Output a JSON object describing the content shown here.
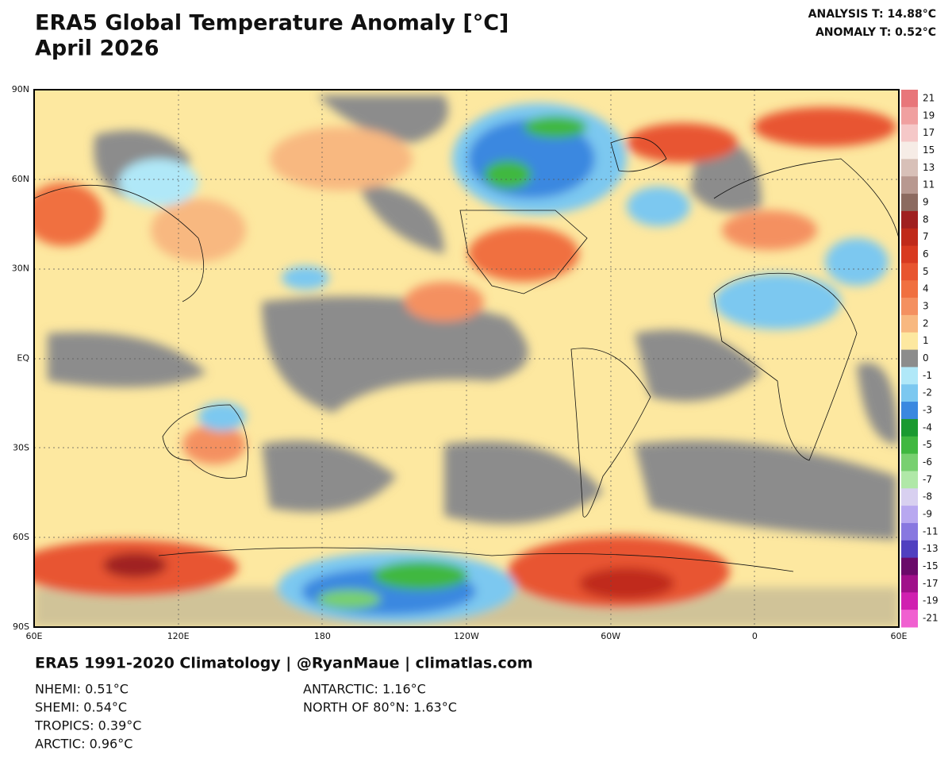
{
  "header": {
    "title": "ERA5 Global Temperature Anomaly [°C]",
    "subtitle": "April 2026",
    "analysis": "ANALYSIS T: 14.88°C",
    "anomaly": "ANOMALY T: 0.52°C"
  },
  "map": {
    "lat_labels": [
      "90N",
      "60N",
      "30N",
      "EQ",
      "30S",
      "60S",
      "90S"
    ],
    "lon_labels": [
      "60E",
      "120E",
      "180",
      "120W",
      "60W",
      "0",
      "60E"
    ]
  },
  "colorbar": {
    "levels": [
      21,
      19,
      17,
      15,
      13,
      11,
      9,
      8,
      7,
      6,
      5,
      4,
      3,
      2,
      1,
      0,
      -1,
      -2,
      -3,
      -4,
      -5,
      -6,
      -7,
      -8,
      -9,
      -11,
      -13,
      -15,
      -17,
      -19,
      -21
    ],
    "colors": [
      "#e8767a",
      "#f0a0a0",
      "#f5c8c8",
      "#f6ece6",
      "#d8c0b8",
      "#b89890",
      "#8c6a60",
      "#a02020",
      "#c02a1a",
      "#d83a20",
      "#e85530",
      "#f07040",
      "#f49060",
      "#f8b880",
      "#fde8a0",
      "#8c8c8c",
      "#b0e8f8",
      "#7cc8f0",
      "#3a88e0",
      "#1a9a30",
      "#40b840",
      "#78d070",
      "#b0e8a8",
      "#d8d0f0",
      "#b8a8f0",
      "#8878e0",
      "#5040c0",
      "#6a0a6a",
      "#a0108a",
      "#d020b0",
      "#f060d0"
    ]
  },
  "footer": {
    "credit": "ERA5 1991-2020 Climatology | @RyanMaue | climatlas.com",
    "stats_left": [
      "NHEMI: 0.51°C",
      "SHEMI: 0.54°C",
      "TROPICS: 0.39°C",
      "ARCTIC: 0.96°C"
    ],
    "stats_right": [
      "ANTARCTIC: 1.16°C",
      "NORTH OF 80°N: 1.63°C"
    ]
  }
}
